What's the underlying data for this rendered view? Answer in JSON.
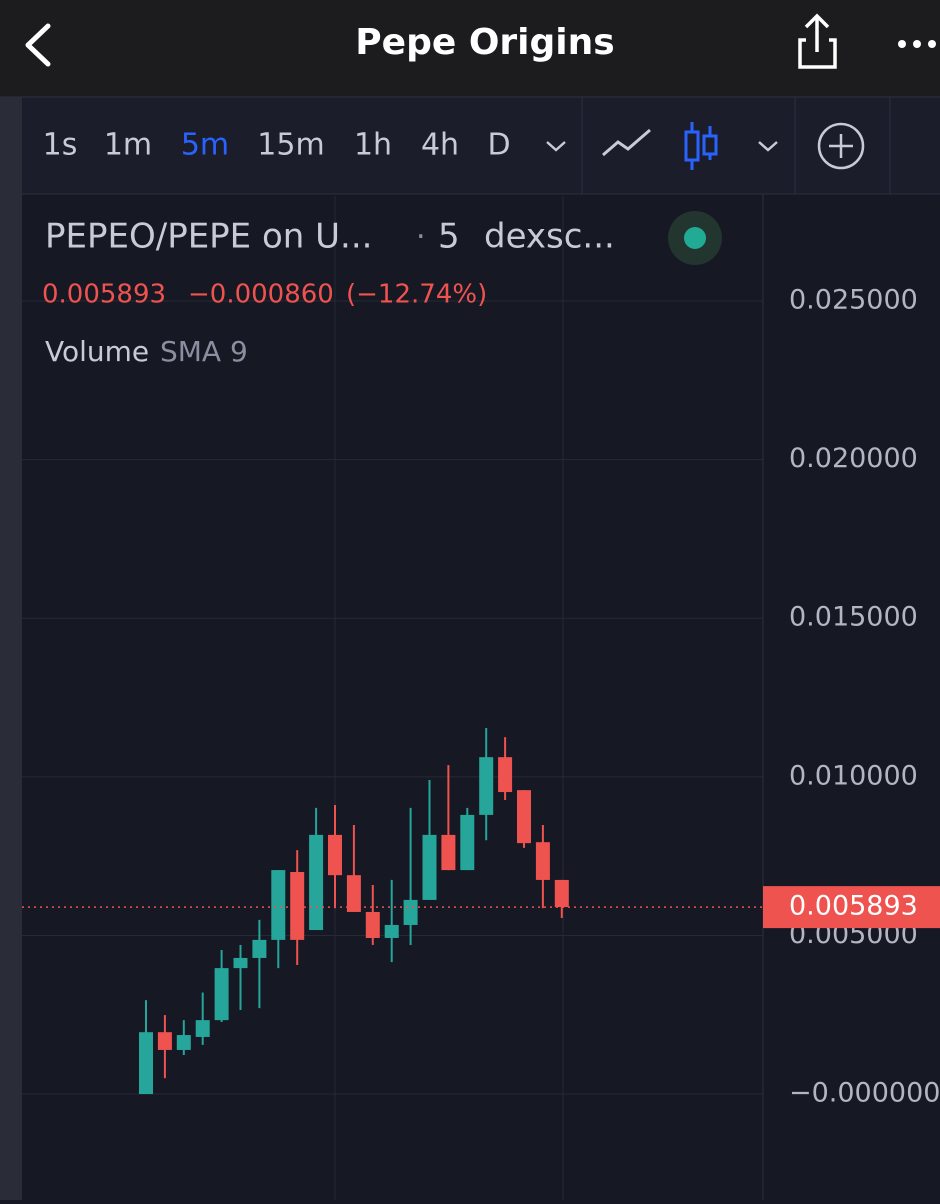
{
  "header": {
    "title": "Pepe Origins"
  },
  "toolbar": {
    "intervals": [
      "1s",
      "1m",
      "5m",
      "15m",
      "1h",
      "4h",
      "D"
    ],
    "active_interval_index": 2
  },
  "legend": {
    "symbol": "PEPEO/PEPE on U...",
    "interval": "5",
    "source": "dexsc...",
    "change_label": "−0.000860",
    "change_percent_label": "(−12.74%)",
    "indicator": "Volume",
    "indicator_setting": "SMA 9"
  },
  "chart_data": {
    "type": "candlestick",
    "categories": [
      null,
      null,
      null,
      null,
      null,
      null,
      null,
      null,
      null,
      null,
      null,
      null,
      null,
      null,
      null,
      null,
      null,
      null,
      null,
      null,
      null,
      null,
      null
    ],
    "open": [
      0.0,
      0.00195,
      0.00139,
      0.0018,
      0.00233,
      0.00397,
      0.00429,
      0.00486,
      0.007,
      0.00517,
      0.00817,
      0.0069,
      0.00574,
      0.00492,
      0.00533,
      0.00612,
      0.00817,
      0.00706,
      0.0088,
      0.01062,
      0.00958,
      0.00794,
      0.00675
    ],
    "high": [
      0.00296,
      0.00249,
      0.00233,
      0.0032,
      0.00454,
      0.0047,
      0.00549,
      0.00706,
      0.00769,
      0.00902,
      0.00911,
      0.00848,
      0.00659,
      0.00675,
      0.00902,
      0.0099,
      0.01037,
      0.00902,
      0.01154,
      0.01125,
      0.00958,
      0.00848,
      0.00675
    ],
    "low": [
      0.0,
      0.0005,
      0.00123,
      0.00155,
      0.00227,
      0.00265,
      0.00271,
      0.00397,
      0.00407,
      0.00517,
      0.00586,
      0.00574,
      0.0047,
      0.00416,
      0.0047,
      0.00612,
      0.00706,
      0.00706,
      0.008,
      0.00927,
      0.00776,
      0.00586,
      0.00555
    ],
    "close": [
      0.00195,
      0.00139,
      0.00186,
      0.00233,
      0.00397,
      0.00429,
      0.00486,
      0.00706,
      0.00486,
      0.00817,
      0.0069,
      0.00574,
      0.00492,
      0.00533,
      0.00612,
      0.00817,
      0.00706,
      0.0088,
      0.01062,
      0.00952,
      0.00791,
      0.00675,
      0.005893
    ],
    "up_color": "#26a69a",
    "down_color": "#ef5350",
    "ylim": [
      -0.00334,
      0.02831
    ],
    "yticks": [
      {
        "value": 0,
        "label": "−0.000000"
      },
      {
        "value": 0.005,
        "label": "0.005000"
      },
      {
        "value": 0.01,
        "label": "0.010000"
      },
      {
        "value": 0.015,
        "label": "0.015000"
      },
      {
        "value": 0.02,
        "label": "0.020000"
      },
      {
        "value": 0.025,
        "label": "0.025000"
      }
    ],
    "grid": true,
    "last_price": {
      "value": 0.005893,
      "label": "0.005893"
    }
  }
}
